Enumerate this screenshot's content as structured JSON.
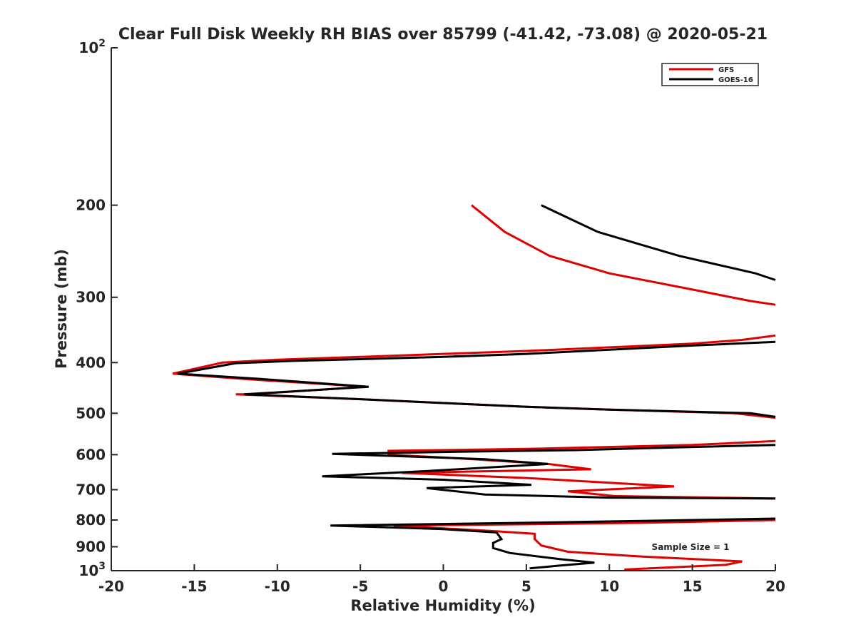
{
  "chart_data": {
    "type": "line",
    "title": "Clear Full Disk Weekly RH BIAS over 85799 (-41.42, -73.08) @ 2020-05-21",
    "xlabel": "Relative Humidity (%)",
    "ylabel": "Pressure (mb)",
    "xlim": [
      -20,
      20
    ],
    "ylim": [
      100,
      1000
    ],
    "y_scale": "log",
    "y_reversed": true,
    "grid": false,
    "legend_position": "top-right",
    "x_ticks": [
      "-20",
      "-15",
      "-10",
      "-5",
      "0",
      "5",
      "10",
      "15",
      "20"
    ],
    "y_ticks": [
      {
        "value": 100,
        "label": "10",
        "sup": "2"
      },
      {
        "value": 200,
        "label": "200",
        "sup": ""
      },
      {
        "value": 300,
        "label": "300",
        "sup": ""
      },
      {
        "value": 400,
        "label": "400",
        "sup": ""
      },
      {
        "value": 500,
        "label": "500",
        "sup": ""
      },
      {
        "value": 600,
        "label": "600",
        "sup": ""
      },
      {
        "value": 700,
        "label": "700",
        "sup": ""
      },
      {
        "value": 800,
        "label": "800",
        "sup": ""
      },
      {
        "value": 900,
        "label": "900",
        "sup": ""
      },
      {
        "value": 1000,
        "label": "10",
        "sup": "3"
      }
    ],
    "annotation": "Sample Size = 1",
    "series": [
      {
        "name": "GFS",
        "color": "#e00000",
        "points": [
          [
            1.7,
            200
          ],
          [
            3.7,
            225
          ],
          [
            6.4,
            250
          ],
          [
            10.0,
            270
          ],
          [
            15.0,
            290
          ],
          [
            18.5,
            305
          ],
          [
            20,
            310
          ],
          null,
          [
            20,
            355
          ],
          [
            18.0,
            362
          ],
          [
            15.0,
            368
          ],
          [
            10.0,
            374
          ],
          [
            5.0,
            380
          ],
          [
            0.0,
            385
          ],
          [
            -5.0,
            390
          ],
          [
            -10.0,
            395
          ],
          [
            -13.3,
            400
          ],
          [
            -16.3,
            420
          ],
          [
            -12.0,
            430
          ],
          [
            -4.6,
            445
          ],
          [
            -11.7,
            460
          ],
          [
            -12.5,
            460
          ],
          [
            -5.0,
            470
          ],
          [
            0.0,
            478
          ],
          [
            5.0,
            486
          ],
          [
            10.0,
            492
          ],
          [
            17.5,
            500
          ],
          [
            20,
            510
          ],
          null,
          [
            20,
            565
          ],
          [
            15.0,
            575
          ],
          [
            5.0,
            585
          ],
          [
            -3.3,
            590
          ],
          [
            -3.3,
            600
          ],
          [
            1.0,
            610
          ],
          [
            6.3,
            625
          ],
          [
            8.9,
            640
          ],
          [
            -2.5,
            650
          ],
          [
            5.0,
            665
          ],
          [
            13.9,
            690
          ],
          [
            7.5,
            705
          ],
          [
            10.3,
            720
          ],
          [
            20,
            728
          ],
          null,
          [
            20,
            800
          ],
          [
            12.0,
            810
          ],
          [
            5.0,
            815
          ],
          [
            -3.0,
            820
          ],
          [
            0.0,
            830
          ],
          [
            3.0,
            840
          ],
          [
            5.5,
            850
          ],
          [
            5.5,
            870
          ],
          [
            5.9,
            895
          ],
          [
            7.5,
            920
          ],
          [
            12.0,
            940
          ],
          [
            18.0,
            960
          ],
          [
            17.0,
            975
          ],
          [
            10.9,
            995
          ]
        ]
      },
      {
        "name": "GOES-16",
        "color": "#000000",
        "points": [
          [
            5.9,
            200
          ],
          [
            9.3,
            225
          ],
          [
            14.2,
            250
          ],
          [
            18.8,
            270
          ],
          [
            20,
            278
          ],
          null,
          [
            20,
            365
          ],
          [
            15.0,
            371
          ],
          [
            10.0,
            378
          ],
          [
            5.0,
            385
          ],
          [
            0.0,
            390
          ],
          [
            -5.0,
            394
          ],
          [
            -9.0,
            397
          ],
          [
            -12.5,
            401
          ],
          [
            -16.0,
            420
          ],
          [
            -11.0,
            430
          ],
          [
            -4.5,
            445
          ],
          [
            -12.0,
            460
          ],
          [
            -5.0,
            470
          ],
          [
            0.0,
            478
          ],
          [
            5.0,
            486
          ],
          [
            10.0,
            492
          ],
          [
            18.5,
            500
          ],
          [
            20,
            508
          ],
          null,
          [
            20,
            575
          ],
          [
            15.0,
            580
          ],
          [
            8.0,
            588
          ],
          [
            0.0,
            593
          ],
          [
            -6.7,
            598
          ],
          [
            -2.0,
            605
          ],
          [
            2.5,
            612
          ],
          [
            6.3,
            625
          ],
          [
            -1.0,
            645
          ],
          [
            -7.3,
            660
          ],
          [
            0.0,
            670
          ],
          [
            5.3,
            685
          ],
          [
            -1.0,
            695
          ],
          [
            2.5,
            715
          ],
          [
            10.0,
            725
          ],
          [
            20,
            728
          ],
          null,
          [
            20,
            795
          ],
          [
            12.0,
            803
          ],
          [
            5.0,
            810
          ],
          [
            -6.8,
            820
          ],
          [
            -3.0,
            827
          ],
          [
            0.0,
            833
          ],
          [
            3.2,
            845
          ],
          [
            3.5,
            870
          ],
          [
            3.0,
            885
          ],
          [
            3.0,
            905
          ],
          [
            4.0,
            925
          ],
          [
            7.0,
            950
          ],
          [
            9.1,
            965
          ],
          [
            7.0,
            978
          ],
          [
            5.2,
            990
          ]
        ]
      }
    ]
  }
}
